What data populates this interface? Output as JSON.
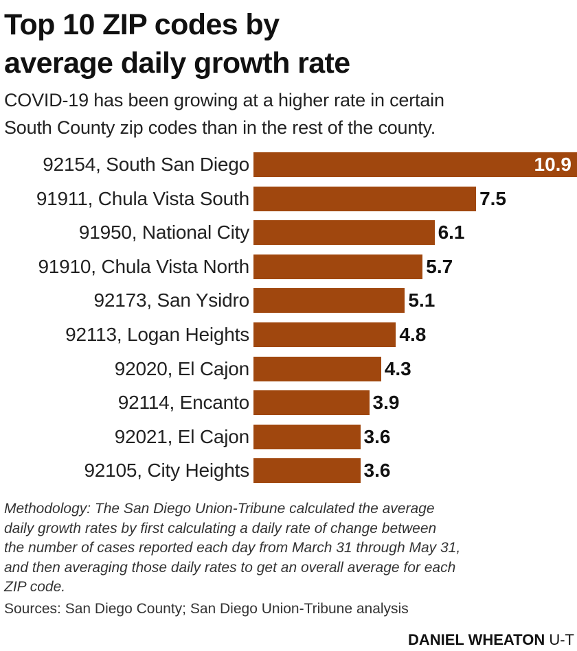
{
  "chart_data": {
    "type": "bar",
    "orientation": "horizontal",
    "title": "Top 10 ZIP codes by average daily growth rate",
    "title_lines": [
      "Top 10 ZIP codes by",
      "average daily growth rate"
    ],
    "subtitle_lines": [
      "COVID-19 has been growing at a higher rate in certain",
      "South County zip codes than in the rest of the county."
    ],
    "categories": [
      "92154, South San Diego",
      "91911, Chula Vista South",
      "91950, National City",
      "91910, Chula Vista North",
      "92173, San Ysidro",
      "92113, Logan Heights",
      "92020, El Cajon",
      "92114, Encanto",
      "92021, El Cajon",
      "92105, City Heights"
    ],
    "values": [
      10.9,
      7.5,
      6.1,
      5.7,
      5.1,
      4.8,
      4.3,
      3.9,
      3.6,
      3.6
    ],
    "value_labels": [
      "10.9",
      "7.5",
      "6.1",
      "5.7",
      "5.1",
      "4.8",
      "4.3",
      "3.9",
      "3.6",
      "3.6"
    ],
    "xlim": [
      0,
      10.9
    ],
    "grid": false,
    "bar_color": "#a0470e",
    "xlabel": "",
    "ylabel": ""
  },
  "footer": {
    "methodology_lines": [
      "Methodology: The San Diego Union-Tribune calculated the average",
      "daily growth rates by first calculating a daily rate of change between",
      "the number of cases reported each day from March 31 through May 31,",
      "and then averaging those daily rates to get an overall average for each",
      "ZIP code."
    ],
    "sources": "Sources: San Diego County; San Diego Union-Tribune analysis",
    "byline_name": "DANIEL WHEATON",
    "byline_org": "U-T"
  }
}
